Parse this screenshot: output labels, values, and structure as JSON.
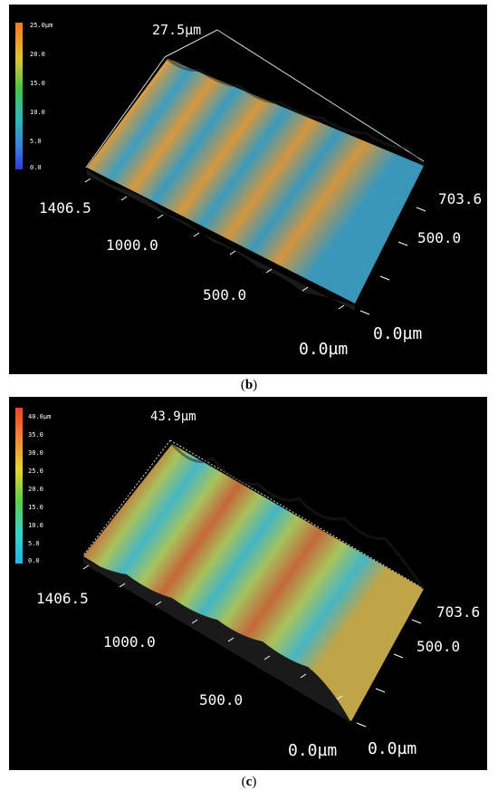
{
  "panels": [
    {
      "id": "b",
      "caption": "(b)",
      "scale_labels": [
        "25.0µm",
        "20.0",
        "15.0",
        "10.0",
        "5.0",
        "0.0"
      ],
      "height_label": "27.5µm",
      "x_labels": [
        "1406.5",
        "1000.0",
        "500.0",
        "0.0µm"
      ],
      "y_labels": [
        "703.6",
        "500.0",
        "0.0µm"
      ]
    },
    {
      "id": "c",
      "caption": "(c)",
      "scale_labels": [
        "40.0µm",
        "35.0",
        "30.0",
        "25.0",
        "20.0",
        "15.0",
        "10.0",
        "5.0",
        "0.0"
      ],
      "height_label": "43.9µm",
      "x_labels": [
        "1406.5",
        "1000.0",
        "500.0",
        "0.0µm"
      ],
      "y_labels": [
        "703.6",
        "500.0",
        "0.0µm"
      ]
    }
  ],
  "colors": {
    "background": "#000000",
    "panel_b_ridge": "#d89a3e",
    "panel_b_valley": "#3d9fc0",
    "panel_c_ridge": "#c56a3a",
    "panel_c_valley": "#46b8c8"
  }
}
